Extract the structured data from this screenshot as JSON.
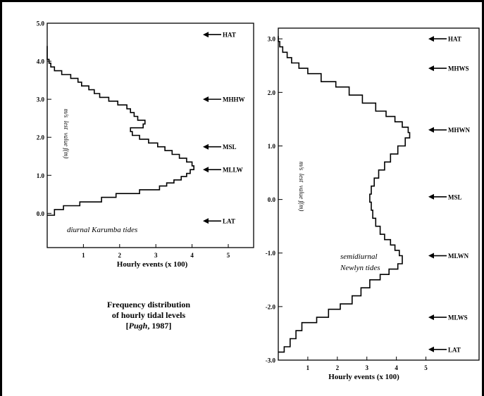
{
  "caption": {
    "line1": "Frequency distribution",
    "line2": "of hourly tidal levels",
    "line3_pre": "[",
    "line3_italic": "Pugh",
    "line3_post": ", 1987]"
  },
  "chart_data": [
    {
      "type": "line",
      "panel": "left",
      "annotation": "diurnal Karumba tides",
      "xlabel": "Hourly events (x 100)",
      "ylabel": "m/s  lest  value f(m)",
      "xlim": [
        0,
        5.7
      ],
      "ylim": [
        -0.9,
        5.0
      ],
      "x_ticks": [
        1,
        2,
        3,
        4,
        5
      ],
      "y_ticks": [
        "0.0",
        "1.0",
        "2.0",
        "3.0",
        "4.0",
        "5.0"
      ],
      "y_tick_values": [
        0,
        1,
        2,
        3,
        4,
        5
      ],
      "levels": [
        {
          "label": "HAT",
          "y": 4.7
        },
        {
          "label": "MHHW",
          "y": 3.0
        },
        {
          "label": "MSL",
          "y": 1.75
        },
        {
          "label": "MLLW",
          "y": 1.15
        },
        {
          "label": "LAT",
          "y": -0.2
        }
      ],
      "profile": [
        [
          0.0,
          -0.05
        ],
        [
          0.2,
          0.1
        ],
        [
          0.45,
          0.2
        ],
        [
          0.9,
          0.3
        ],
        [
          1.5,
          0.42
        ],
        [
          1.9,
          0.52
        ],
        [
          2.55,
          0.62
        ],
        [
          3.1,
          0.72
        ],
        [
          3.3,
          0.8
        ],
        [
          3.5,
          0.88
        ],
        [
          3.7,
          0.97
        ],
        [
          3.85,
          1.05
        ],
        [
          3.95,
          1.15
        ],
        [
          4.05,
          1.25
        ],
        [
          4.0,
          1.35
        ],
        [
          3.85,
          1.45
        ],
        [
          3.65,
          1.55
        ],
        [
          3.45,
          1.65
        ],
        [
          3.25,
          1.75
        ],
        [
          3.05,
          1.85
        ],
        [
          2.8,
          1.95
        ],
        [
          2.55,
          2.05
        ],
        [
          2.35,
          2.15
        ],
        [
          2.3,
          2.25
        ],
        [
          2.65,
          2.35
        ],
        [
          2.7,
          2.45
        ],
        [
          2.5,
          2.55
        ],
        [
          2.4,
          2.65
        ],
        [
          2.3,
          2.75
        ],
        [
          2.2,
          2.85
        ],
        [
          1.95,
          2.95
        ],
        [
          1.7,
          3.05
        ],
        [
          1.45,
          3.15
        ],
        [
          1.3,
          3.25
        ],
        [
          1.15,
          3.35
        ],
        [
          0.95,
          3.45
        ],
        [
          0.85,
          3.55
        ],
        [
          0.65,
          3.65
        ],
        [
          0.4,
          3.75
        ],
        [
          0.2,
          3.85
        ],
        [
          0.1,
          3.95
        ],
        [
          0.05,
          4.05
        ],
        [
          0.0,
          4.4
        ]
      ]
    },
    {
      "type": "line",
      "panel": "right",
      "annotation": "semidiurnal Newlyn tides",
      "annotation_lines": [
        "semidiurnal",
        "Newlyn tides"
      ],
      "xlabel": "Hourly events (x 100)",
      "ylabel": "m/s  lest  value f(m)",
      "xlim": [
        0,
        6.8
      ],
      "ylim": [
        -3.0,
        3.2
      ],
      "x_ticks": [
        1,
        2,
        3,
        4,
        5
      ],
      "y_ticks": [
        "-3.0",
        "-2.0",
        "-1.0",
        "0.0",
        "1.0",
        "2.0",
        "3.0"
      ],
      "y_tick_values": [
        -3,
        -2,
        -1,
        0,
        1,
        2,
        3
      ],
      "levels": [
        {
          "label": "HAT",
          "y": 3.0
        },
        {
          "label": "MHWS",
          "y": 2.45
        },
        {
          "label": "MHWN",
          "y": 1.3
        },
        {
          "label": "MSL",
          "y": 0.05
        },
        {
          "label": "MLWN",
          "y": -1.05
        },
        {
          "label": "MLWS",
          "y": -2.2
        },
        {
          "label": "LAT",
          "y": -2.8
        }
      ],
      "profile": [
        [
          0.0,
          -2.85
        ],
        [
          0.2,
          -2.75
        ],
        [
          0.4,
          -2.6
        ],
        [
          0.6,
          -2.45
        ],
        [
          0.8,
          -2.3
        ],
        [
          1.3,
          -2.2
        ],
        [
          1.7,
          -2.05
        ],
        [
          2.1,
          -1.95
        ],
        [
          2.5,
          -1.8
        ],
        [
          2.8,
          -1.65
        ],
        [
          3.1,
          -1.5
        ],
        [
          3.45,
          -1.4
        ],
        [
          3.75,
          -1.3
        ],
        [
          4.05,
          -1.2
        ],
        [
          4.2,
          -1.05
        ],
        [
          4.1,
          -0.95
        ],
        [
          3.95,
          -0.85
        ],
        [
          3.8,
          -0.75
        ],
        [
          3.6,
          -0.65
        ],
        [
          3.45,
          -0.5
        ],
        [
          3.3,
          -0.35
        ],
        [
          3.2,
          -0.2
        ],
        [
          3.15,
          -0.05
        ],
        [
          3.1,
          0.1
        ],
        [
          3.15,
          0.25
        ],
        [
          3.25,
          0.4
        ],
        [
          3.4,
          0.55
        ],
        [
          3.6,
          0.7
        ],
        [
          3.8,
          0.85
        ],
        [
          4.05,
          1.0
        ],
        [
          4.3,
          1.15
        ],
        [
          4.45,
          1.25
        ],
        [
          4.4,
          1.35
        ],
        [
          4.2,
          1.45
        ],
        [
          3.95,
          1.55
        ],
        [
          3.65,
          1.65
        ],
        [
          3.3,
          1.8
        ],
        [
          2.85,
          1.95
        ],
        [
          2.4,
          2.1
        ],
        [
          1.95,
          2.2
        ],
        [
          1.45,
          2.35
        ],
        [
          1.0,
          2.45
        ],
        [
          0.7,
          2.55
        ],
        [
          0.45,
          2.65
        ],
        [
          0.3,
          2.75
        ],
        [
          0.15,
          2.85
        ],
        [
          0.05,
          2.95
        ],
        [
          0.0,
          3.05
        ]
      ]
    }
  ]
}
